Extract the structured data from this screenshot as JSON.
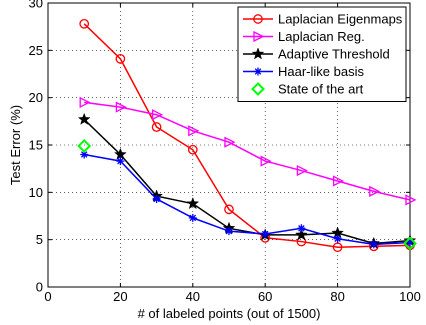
{
  "chart_data": {
    "type": "line",
    "xlabel": "# of labeled points (out of 1500)",
    "ylabel": "Test Error (%)",
    "xlim": [
      0,
      100
    ],
    "ylim": [
      0,
      30
    ],
    "xticks": [
      0,
      20,
      40,
      60,
      80,
      100
    ],
    "yticks": [
      0,
      5,
      10,
      15,
      20,
      25,
      30
    ],
    "grid": true,
    "legend_position": "top-right",
    "series": [
      {
        "name": "Laplacian Eigenmaps",
        "color": "#ff0000",
        "marker": "circle",
        "x": [
          10,
          20,
          30,
          40,
          50,
          60,
          70,
          80,
          90,
          100
        ],
        "y": [
          27.8,
          24.1,
          16.9,
          14.5,
          8.2,
          5.2,
          4.8,
          4.2,
          4.3,
          4.4
        ]
      },
      {
        "name": "Laplacian Reg.",
        "color": "#ff00ff",
        "marker": "triangle-right",
        "x": [
          10,
          20,
          30,
          40,
          50,
          60,
          70,
          80,
          90,
          100
        ],
        "y": [
          19.5,
          19.0,
          18.2,
          16.5,
          15.3,
          13.3,
          12.3,
          11.2,
          10.1,
          9.2
        ]
      },
      {
        "name": "Adaptive Threshold",
        "color": "#000000",
        "marker": "star",
        "x": [
          10,
          20,
          30,
          40,
          50,
          60,
          70,
          80,
          90,
          100
        ],
        "y": [
          17.7,
          14.0,
          9.6,
          8.8,
          6.2,
          5.5,
          5.5,
          5.7,
          4.6,
          4.9
        ]
      },
      {
        "name": "Haar-like basis",
        "color": "#0000ff",
        "marker": "asterisk",
        "x": [
          10,
          20,
          30,
          40,
          50,
          60,
          70,
          80,
          90,
          100
        ],
        "y": [
          14.0,
          13.3,
          9.3,
          7.3,
          5.9,
          5.6,
          6.2,
          5.1,
          4.5,
          4.7
        ]
      },
      {
        "name": "State of the art",
        "color": "#00ff00",
        "marker": "diamond",
        "line": false,
        "x": [
          10,
          100
        ],
        "y": [
          14.9,
          4.6
        ]
      }
    ]
  }
}
